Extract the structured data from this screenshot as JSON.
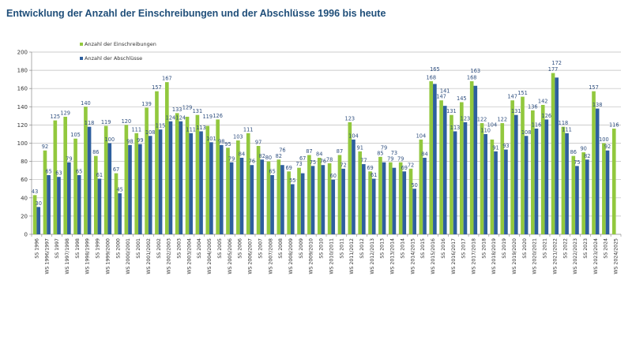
{
  "chart_data": {
    "type": "bar",
    "title": "Entwicklung der Anzahl der Einschreibungen und der Abschlüsse 1996 bis heute",
    "xlabel": "",
    "ylabel": "",
    "ylim": [
      0,
      200
    ],
    "yticks": [
      0,
      20,
      40,
      60,
      80,
      100,
      120,
      140,
      160,
      180,
      200
    ],
    "grid": true,
    "legend_position": "top-left",
    "categories": [
      "SS 1996",
      "WS 1996/1997",
      "SS 1997",
      "WS 1997/1998",
      "SS 1998",
      "WS 1998/1999",
      "SS 1999",
      "WS 1999/2000",
      "SS 2000",
      "WS 2000/2001",
      "SS 2001",
      "WS 2001/2002",
      "SS 2002",
      "WS 2002/2003",
      "SS 2003",
      "WS 2003/2004",
      "SS 2004",
      "WS 2004/2005",
      "SS 2005",
      "WS 2005/2006",
      "SS 2006",
      "WS 2006/2007",
      "SS 2007",
      "WS 2007/2008",
      "SS 2008",
      "WS 2008/2009",
      "SS 2009",
      "WS 2009/2010",
      "SS 2010",
      "WS 2010/2011",
      "SS 2011",
      "WS 2011/2012",
      "SS 2012",
      "WS 2012/2013",
      "SS 2013",
      "WS 2013/2014",
      "SS 2014",
      "WS 2014/2015",
      "SS 2015",
      "WS 2015/2016",
      "SS 2016",
      "WS 2016/2017",
      "SS 2017",
      "WS 2017/2018",
      "SS 2018",
      "WS 2018/2019",
      "SS 2019",
      "WS 2019/2020",
      "SS 2020",
      "WS 2020/2021",
      "SS 2021",
      "WS 2021/2022",
      "SS 2022",
      "WS 2022/2023",
      "SS 2023",
      "WS 2023/2024",
      "SS 2024",
      "WS 2024/2025"
    ],
    "series": [
      {
        "name": "Anzahl der Einschreibungen",
        "color": "#92c83e",
        "values": [
          43,
          92,
          125,
          129,
          105,
          140,
          86,
          119,
          67,
          120,
          111,
          139,
          157,
          167,
          133,
          129,
          131,
          119,
          126,
          95,
          103,
          111,
          97,
          80,
          82,
          69,
          73,
          87,
          84,
          78,
          87,
          123,
          91,
          69,
          85,
          79,
          79,
          72,
          104,
          168,
          147,
          131,
          145,
          168,
          122,
          104,
          122,
          147,
          151,
          136,
          142,
          177,
          118,
          86,
          90,
          157,
          100,
          116
        ]
      },
      {
        "name": "Anzahl der Abschlüsse",
        "color": "#2e5f9e",
        "values": [
          30,
          65,
          63,
          79,
          65,
          118,
          61,
          100,
          45,
          98,
          99,
          108,
          115,
          124,
          124,
          111,
          113,
          101,
          98,
          79,
          84,
          76,
          82,
          65,
          76,
          55,
          67,
          75,
          76,
          60,
          72,
          104,
          77,
          61,
          79,
          73,
          69,
          50,
          84,
          165,
          141,
          113,
          123,
          163,
          110,
          91,
          93,
          131,
          108,
          116,
          126,
          172,
          111,
          75,
          82,
          138,
          92,
          null
        ]
      }
    ]
  }
}
